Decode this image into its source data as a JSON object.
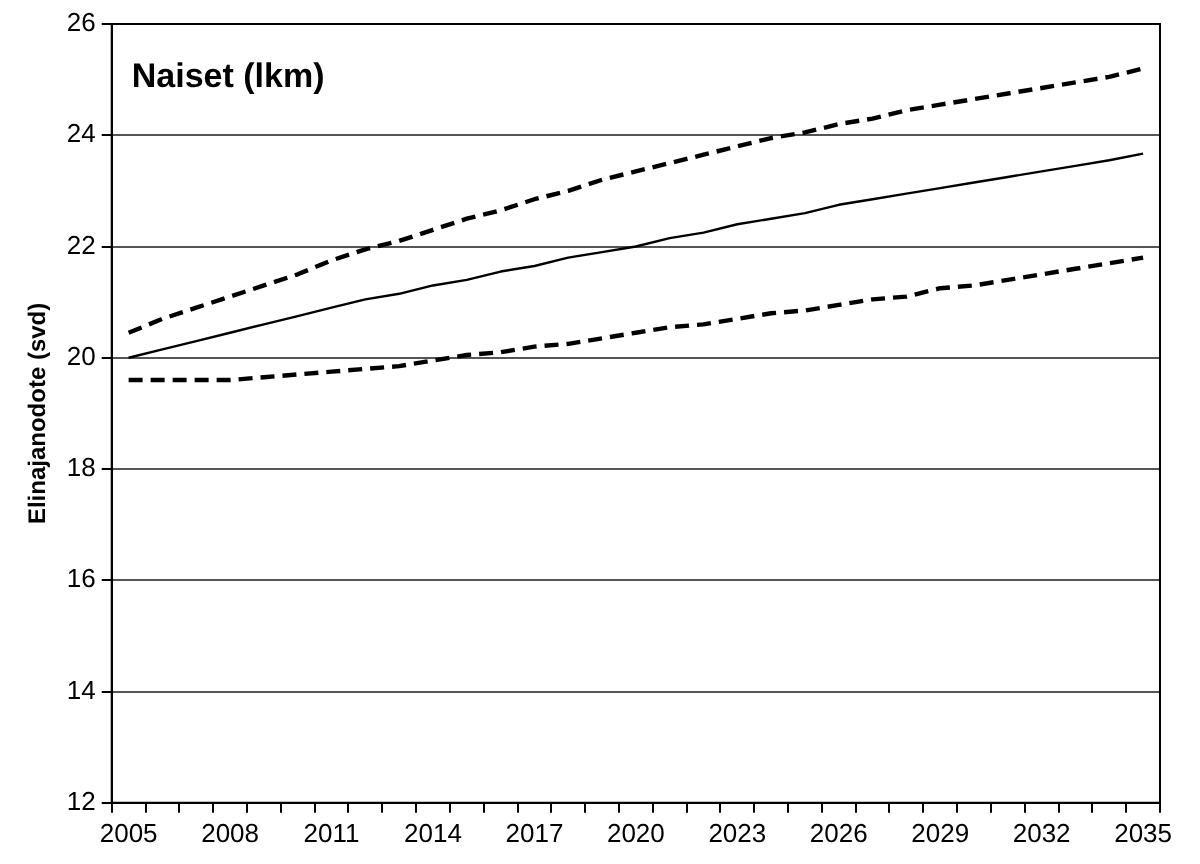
{
  "chart_data": {
    "type": "line",
    "title": "Naiset (lkm)",
    "ylabel": "Elinajanodote (svd)",
    "categories": [
      "2005",
      null,
      null,
      "2008",
      null,
      null,
      "2011",
      null,
      null,
      "2014",
      null,
      null,
      "2017",
      null,
      null,
      "2020",
      null,
      null,
      "2023",
      null,
      null,
      "2026",
      null,
      null,
      "2029",
      null,
      null,
      "2032",
      null,
      null,
      "2035"
    ],
    "series": [
      {
        "color": "#000000",
        "line_style": "dashed",
        "values": [
          20.45,
          20.7,
          20.9,
          21.1,
          21.3,
          21.5,
          21.75,
          21.95,
          22.1,
          22.3,
          22.5,
          22.65,
          22.85,
          23.0,
          23.2,
          23.35,
          23.5,
          23.65,
          23.8,
          23.95,
          24.05,
          24.2,
          24.3,
          24.45,
          24.55,
          24.65,
          24.75,
          24.85,
          24.95,
          25.05,
          25.2
        ]
      },
      {
        "color": "#000000",
        "line_style": "solid",
        "values": [
          20.0,
          20.15,
          20.3,
          20.45,
          20.6,
          20.75,
          20.9,
          21.05,
          21.15,
          21.3,
          21.4,
          21.55,
          21.65,
          21.8,
          21.9,
          22.0,
          22.15,
          22.25,
          22.4,
          22.5,
          22.6,
          22.75,
          22.85,
          22.95,
          23.05,
          23.15,
          23.25,
          23.35,
          23.45,
          23.55,
          23.67
        ]
      },
      {
        "color": "#000000",
        "line_style": "dashed",
        "values": [
          19.6,
          19.6,
          19.6,
          19.6,
          19.65,
          19.7,
          19.75,
          19.8,
          19.85,
          19.95,
          20.05,
          20.1,
          20.2,
          20.25,
          20.35,
          20.45,
          20.55,
          20.6,
          20.7,
          20.8,
          20.85,
          20.95,
          21.05,
          21.1,
          21.25,
          21.3,
          21.4,
          21.5,
          21.6,
          21.7,
          21.8
        ]
      }
    ],
    "ylim": [
      12,
      26
    ],
    "yticks": [
      12,
      14,
      16,
      18,
      20,
      22,
      24,
      26
    ],
    "grid": "y",
    "legend": false,
    "marker": "none"
  }
}
